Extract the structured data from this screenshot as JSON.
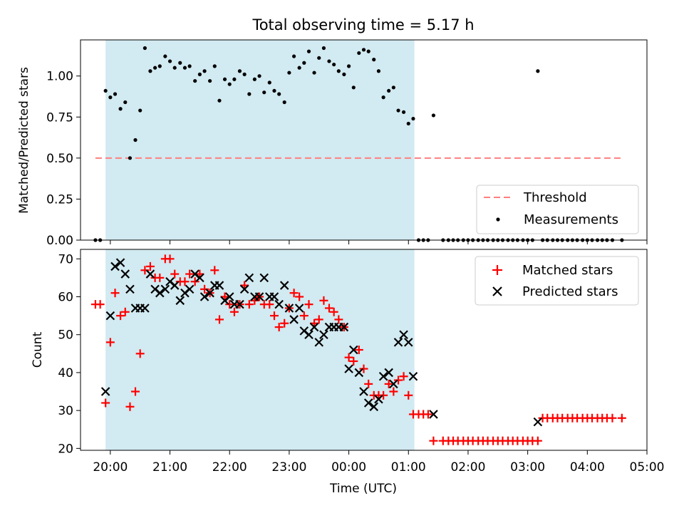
{
  "title": "Total observing time = 5.17 h",
  "colors": {
    "shade": "#add8e6",
    "threshold": "#ff7f7f",
    "matched": "#ff0000",
    "predicted": "#000000",
    "measurement": "#000000"
  },
  "chart_data": [
    {
      "type": "scatter",
      "ylabel": "Matched/Predicted stars",
      "ylim": [
        0,
        1.22
      ],
      "yticks": [
        0,
        0.25,
        0.5,
        0.75,
        1.0
      ],
      "ytick_labels": [
        "0.00",
        "0.25",
        "0.50",
        "0.75",
        "1.00"
      ],
      "xlim": [
        19.5,
        29.0
      ],
      "shaded_interval": [
        19.92,
        25.1
      ],
      "legend": {
        "position": "lower right",
        "entries": [
          "Threshold",
          "Measurements"
        ]
      },
      "threshold": {
        "name": "Threshold",
        "y": 0.5,
        "x_range": [
          19.75,
          28.58
        ]
      },
      "series": [
        {
          "name": "Measurements",
          "x": [
            19.75,
            19.83,
            19.92,
            20.0,
            20.08,
            20.17,
            20.25,
            20.33,
            20.42,
            20.5,
            20.58,
            20.67,
            20.75,
            20.83,
            20.92,
            21.0,
            21.08,
            21.17,
            21.25,
            21.33,
            21.42,
            21.5,
            21.58,
            21.67,
            21.75,
            21.83,
            21.92,
            22.0,
            22.08,
            22.17,
            22.25,
            22.33,
            22.42,
            22.5,
            22.58,
            22.67,
            22.75,
            22.83,
            22.92,
            23.0,
            23.08,
            23.17,
            23.25,
            23.33,
            23.42,
            23.5,
            23.58,
            23.67,
            23.75,
            23.83,
            23.92,
            24.0,
            24.08,
            24.17,
            24.25,
            24.33,
            24.42,
            24.5,
            24.58,
            24.67,
            24.75,
            24.83,
            24.92,
            25.0,
            25.08,
            25.17,
            25.25,
            25.33,
            25.42,
            25.58,
            25.67,
            25.75,
            25.83,
            25.92,
            26.0,
            26.08,
            26.17,
            26.25,
            26.33,
            26.42,
            26.5,
            26.58,
            26.67,
            26.75,
            26.83,
            26.92,
            27.0,
            27.08,
            27.17,
            27.25,
            27.33,
            27.42,
            27.5,
            27.58,
            27.67,
            27.75,
            27.83,
            27.92,
            28.0,
            28.08,
            28.17,
            28.25,
            28.33,
            28.42,
            28.58
          ],
          "values": [
            0.0,
            0.0,
            0.91,
            0.87,
            0.89,
            0.8,
            0.84,
            0.5,
            0.61,
            0.79,
            1.17,
            1.03,
            1.05,
            1.06,
            1.12,
            1.09,
            1.05,
            1.08,
            1.05,
            1.06,
            0.97,
            1.01,
            1.03,
            0.97,
            1.06,
            0.85,
            0.98,
            0.95,
            0.98,
            1.03,
            1.01,
            0.89,
            0.98,
            1.0,
            0.9,
            0.96,
            0.91,
            0.89,
            0.84,
            1.02,
            1.12,
            1.05,
            1.08,
            1.15,
            1.02,
            1.11,
            1.17,
            1.09,
            1.07,
            1.03,
            1.01,
            1.06,
            0.93,
            1.14,
            1.16,
            1.15,
            1.1,
            1.03,
            0.87,
            0.91,
            0.93,
            0.79,
            0.78,
            0.71,
            0.74,
            0.0,
            0.0,
            0.0,
            0.76,
            0.0,
            0.0,
            0.0,
            0.0,
            0.0,
            0.0,
            0.0,
            0.0,
            0.0,
            0.0,
            0.0,
            0.0,
            0.0,
            0.0,
            0.0,
            0.0,
            0.0,
            0.0,
            0.0,
            1.03,
            0.0,
            0.0,
            0.0,
            0.0,
            0.0,
            0.0,
            0.0,
            0.0,
            0.0,
            0.0,
            0.0,
            0.0,
            0.0,
            0.0,
            0.0,
            0.0
          ]
        }
      ]
    },
    {
      "type": "scatter",
      "ylabel": "Count",
      "xlabel": "Time (UTC)",
      "ylim": [
        19.5,
        72.5
      ],
      "yticks": [
        20,
        30,
        40,
        50,
        60,
        70
      ],
      "ytick_labels": [
        "20",
        "30",
        "40",
        "50",
        "60",
        "70"
      ],
      "xlim": [
        19.5,
        29.0
      ],
      "xticks": [
        20,
        21,
        22,
        23,
        24,
        25,
        26,
        27,
        28,
        29
      ],
      "xtick_labels": [
        "20:00",
        "21:00",
        "22:00",
        "23:00",
        "00:00",
        "01:00",
        "02:00",
        "03:00",
        "04:00",
        "05:00"
      ],
      "shaded_interval": [
        19.92,
        25.1
      ],
      "legend": {
        "position": "upper right",
        "entries": [
          "Matched stars",
          "Predicted stars"
        ]
      },
      "series": [
        {
          "name": "Matched stars",
          "marker": "+",
          "x": [
            19.75,
            19.83,
            19.92,
            20.0,
            20.08,
            20.17,
            20.25,
            20.33,
            20.42,
            20.5,
            20.58,
            20.67,
            20.75,
            20.83,
            20.92,
            21.0,
            21.08,
            21.17,
            21.25,
            21.33,
            21.42,
            21.5,
            21.58,
            21.67,
            21.75,
            21.83,
            21.92,
            22.0,
            22.08,
            22.17,
            22.25,
            22.33,
            22.42,
            22.5,
            22.58,
            22.67,
            22.75,
            22.83,
            22.92,
            23.0,
            23.08,
            23.17,
            23.25,
            23.33,
            23.42,
            23.5,
            23.58,
            23.67,
            23.75,
            23.83,
            23.92,
            24.0,
            24.08,
            24.17,
            24.25,
            24.33,
            24.42,
            24.5,
            24.58,
            24.67,
            24.75,
            24.83,
            24.92,
            25.0,
            25.08,
            25.17,
            25.25,
            25.33,
            25.42,
            25.58,
            25.67,
            25.75,
            25.83,
            25.92,
            26.0,
            26.08,
            26.17,
            26.25,
            26.33,
            26.42,
            26.5,
            26.58,
            26.67,
            26.75,
            26.83,
            26.92,
            27.0,
            27.08,
            27.17,
            27.25,
            27.33,
            27.42,
            27.5,
            27.58,
            27.67,
            27.75,
            27.83,
            27.92,
            28.0,
            28.08,
            28.17,
            28.25,
            28.33,
            28.42,
            28.58
          ],
          "values": [
            58,
            58,
            32,
            48,
            61,
            55,
            56,
            31,
            35,
            45,
            67,
            68,
            65,
            65,
            70,
            70,
            66,
            64,
            64,
            66,
            64,
            66,
            62,
            61,
            67,
            54,
            60,
            58,
            56,
            58,
            63,
            58,
            59,
            60,
            58,
            58,
            55,
            52,
            53,
            57,
            61,
            60,
            55,
            58,
            53,
            54,
            59,
            57,
            56,
            54,
            52,
            44,
            43,
            46,
            41,
            37,
            34,
            34,
            34,
            37,
            35,
            38,
            39,
            34,
            29,
            29,
            29,
            29,
            22,
            22,
            22,
            22,
            22,
            22,
            22,
            22,
            22,
            22,
            22,
            22,
            22,
            22,
            22,
            22,
            22,
            22,
            22,
            22,
            22,
            28,
            28,
            28,
            28,
            28,
            28,
            28,
            28,
            28,
            28,
            28,
            28,
            28,
            28,
            28,
            28
          ]
        },
        {
          "name": "Predicted stars",
          "marker": "x",
          "x": [
            19.92,
            20.0,
            20.08,
            20.17,
            20.25,
            20.33,
            20.42,
            20.5,
            20.58,
            20.67,
            20.75,
            20.83,
            20.92,
            21.0,
            21.08,
            21.17,
            21.25,
            21.33,
            21.42,
            21.5,
            21.58,
            21.67,
            21.75,
            21.83,
            21.92,
            22.0,
            22.08,
            22.17,
            22.25,
            22.33,
            22.42,
            22.5,
            22.58,
            22.67,
            22.75,
            22.83,
            22.92,
            23.0,
            23.08,
            23.17,
            23.25,
            23.33,
            23.42,
            23.5,
            23.58,
            23.67,
            23.75,
            23.83,
            23.92,
            24.0,
            24.08,
            24.17,
            24.25,
            24.33,
            24.42,
            24.5,
            24.58,
            24.67,
            24.75,
            24.83,
            24.92,
            25.0,
            25.08,
            25.42,
            27.17
          ],
          "values": [
            35,
            55,
            68,
            69,
            66,
            62,
            57,
            57,
            57,
            66,
            62,
            61,
            62,
            64,
            63,
            59,
            61,
            62,
            66,
            65,
            60,
            61,
            63,
            63,
            59,
            60,
            58,
            58,
            62,
            65,
            60,
            60,
            65,
            60,
            60,
            58,
            63,
            57,
            54,
            57,
            51,
            50,
            52,
            48,
            50,
            52,
            52,
            52,
            52,
            41,
            46,
            40,
            35,
            32,
            31,
            33,
            39,
            40,
            37,
            48,
            50,
            48,
            39,
            29,
            27
          ]
        }
      ]
    }
  ]
}
